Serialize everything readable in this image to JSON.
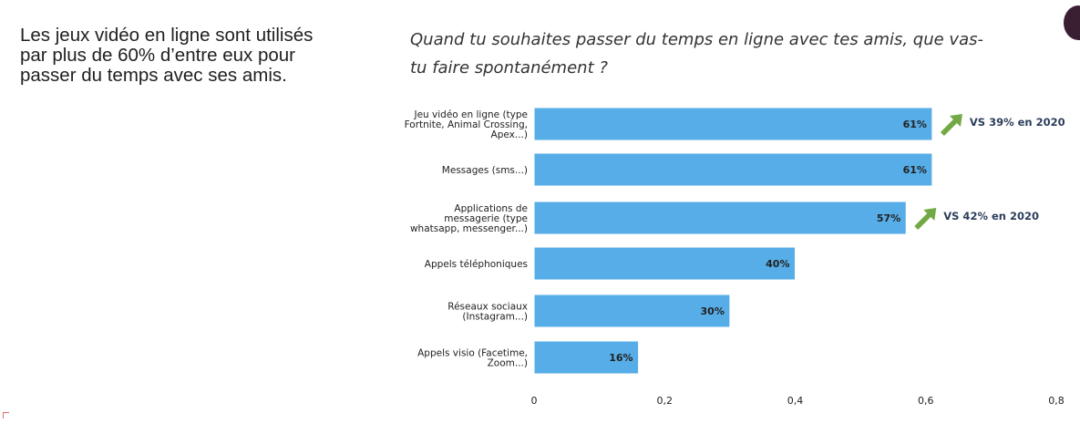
{
  "intro_text": "Les jeux vidéo en ligne sont utilisés par plus de 60% d’entre eux pour passer du temps avec ses amis.",
  "question": "Quand tu souhaites passer du temps en ligne avec tes amis, que vas-tu faire spontanément ?",
  "colors": {
    "bar": "#56ade7",
    "bar_border": "#ffffff",
    "arrow": "#72a944",
    "annotation": "#2c3e5c"
  },
  "chart_data": {
    "type": "bar",
    "orientation": "horizontal",
    "categories": [
      [
        "Jeu vidéo en ligne (type",
        "Fortnite, Animal Crossing,",
        "Apex...)"
      ],
      [
        "Messages (sms...)"
      ],
      [
        "Applications de",
        "messagerie (type",
        "whatsapp, messenger...)"
      ],
      [
        "Appels téléphoniques"
      ],
      [
        "Réseaux sociaux",
        "(Instagram...)"
      ],
      [
        "Appels visio (Facetime,",
        "Zoom...)"
      ]
    ],
    "values": [
      0.61,
      0.61,
      0.57,
      0.4,
      0.3,
      0.16
    ],
    "data_labels": [
      "61%",
      "61%",
      "57%",
      "40%",
      "30%",
      "16%"
    ],
    "xlim": [
      0,
      0.8
    ],
    "xticks": [
      0,
      0.2,
      0.4,
      0.6,
      0.8
    ],
    "xtick_labels": [
      "0",
      "0,2",
      "0,4",
      "0,6",
      "0,8"
    ],
    "grid": false,
    "annotations": [
      {
        "category_index": 0,
        "text": "VS 39% en 2020",
        "icon": "arrow-up-right-icon"
      },
      {
        "category_index": 2,
        "text": "VS 42% en 2020",
        "icon": "arrow-up-right-icon"
      }
    ]
  }
}
